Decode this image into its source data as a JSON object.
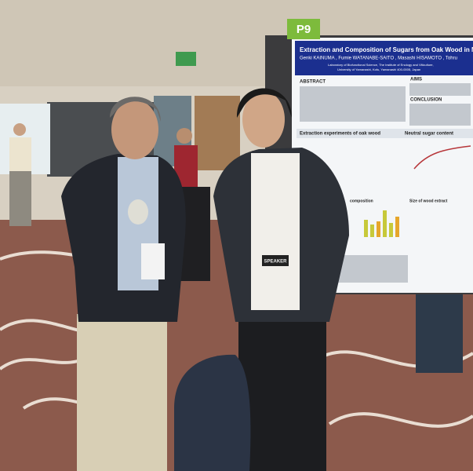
{
  "sign": {
    "label": "P9"
  },
  "poster": {
    "title": "Extraction and Composition of Sugars from Oak Wood in Model S",
    "authors": "Genki KAINUMA , Fumie WATANABE-SAITO , Masashi HISAMOTO , Tohru",
    "affiliation": [
      "Laboratory of Biofunctional Science, The Institute of Enology and Viticulture,",
      "University of Yamanashi, Kofu, Yamanashi 400-0005, Japan"
    ],
    "sections": [
      "ABSTRACT",
      "AIMS",
      "CONCLUSION",
      "Extraction experiments of oak wood",
      "Neutral sugar content",
      "composition",
      "Size of wood extract"
    ]
  },
  "badge": "SPEAKER"
}
